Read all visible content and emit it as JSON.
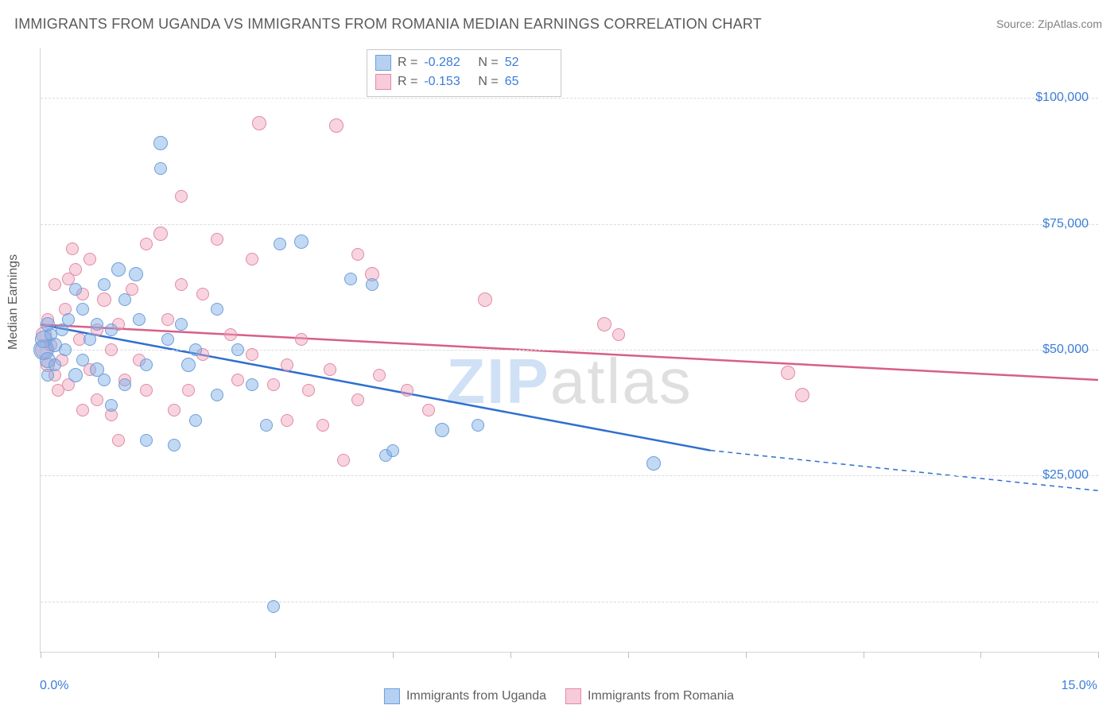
{
  "title": "IMMIGRANTS FROM UGANDA VS IMMIGRANTS FROM ROMANIA MEDIAN EARNINGS CORRELATION CHART",
  "source": "Source: ZipAtlas.com",
  "watermark": {
    "prefix": "ZIP",
    "suffix": "atlas"
  },
  "y_axis_title": "Median Earnings",
  "chart": {
    "type": "scatter",
    "background_color": "#ffffff",
    "grid_color": "#dcdcdc",
    "axis_color": "#d6d6d6",
    "tick_label_color": "#3b7dd8",
    "title_color": "#5a5a5a",
    "title_fontsize": 18,
    "tick_fontsize": 16,
    "xlim": [
      0,
      15
    ],
    "ylim": [
      -10000,
      110000
    ],
    "y_gridlines": [
      0,
      25000,
      50000,
      75000,
      100000
    ],
    "y_tick_labels": [
      "$25,000",
      "$50,000",
      "$75,000",
      "$100,000"
    ],
    "y_tick_values": [
      25000,
      50000,
      75000,
      100000
    ],
    "x_tick_values": [
      0,
      1.67,
      3.33,
      5.0,
      6.67,
      8.33,
      10.0,
      11.67,
      13.33,
      15.0
    ],
    "x_min_label": "0.0%",
    "x_max_label": "15.0%"
  },
  "series": {
    "uganda": {
      "label": "Immigrants from Uganda",
      "marker_fill": "rgba(120,170,230,0.45)",
      "marker_stroke": "#6f9fd8",
      "line_color": "#2f6fd0",
      "line_width": 2.5,
      "R": "-0.282",
      "N": "52",
      "marker_radius_base": 7,
      "regression": {
        "x1": 0,
        "y1": 55000,
        "x2": 9.5,
        "y2": 30000,
        "extend_x": 15,
        "extend_y": 22000
      },
      "points": [
        {
          "x": 0.05,
          "y": 50000,
          "r": 12
        },
        {
          "x": 0.05,
          "y": 52000,
          "r": 10
        },
        {
          "x": 0.1,
          "y": 48000,
          "r": 9
        },
        {
          "x": 0.1,
          "y": 55000,
          "r": 8
        },
        {
          "x": 0.1,
          "y": 45000,
          "r": 7
        },
        {
          "x": 0.15,
          "y": 53000,
          "r": 7
        },
        {
          "x": 0.2,
          "y": 51000,
          "r": 8
        },
        {
          "x": 0.2,
          "y": 47000,
          "r": 7
        },
        {
          "x": 0.3,
          "y": 54000,
          "r": 7
        },
        {
          "x": 0.35,
          "y": 50000,
          "r": 7
        },
        {
          "x": 0.4,
          "y": 56000,
          "r": 7
        },
        {
          "x": 0.5,
          "y": 45000,
          "r": 8
        },
        {
          "x": 0.5,
          "y": 62000,
          "r": 7
        },
        {
          "x": 0.6,
          "y": 48000,
          "r": 7
        },
        {
          "x": 0.6,
          "y": 58000,
          "r": 7
        },
        {
          "x": 0.7,
          "y": 52000,
          "r": 7
        },
        {
          "x": 0.8,
          "y": 46000,
          "r": 8
        },
        {
          "x": 0.8,
          "y": 55000,
          "r": 7
        },
        {
          "x": 0.9,
          "y": 63000,
          "r": 7
        },
        {
          "x": 0.9,
          "y": 44000,
          "r": 7
        },
        {
          "x": 1.0,
          "y": 39000,
          "r": 7
        },
        {
          "x": 1.0,
          "y": 54000,
          "r": 7
        },
        {
          "x": 1.1,
          "y": 66000,
          "r": 8
        },
        {
          "x": 1.2,
          "y": 43000,
          "r": 7
        },
        {
          "x": 1.2,
          "y": 60000,
          "r": 7
        },
        {
          "x": 1.35,
          "y": 65000,
          "r": 8
        },
        {
          "x": 1.4,
          "y": 56000,
          "r": 7
        },
        {
          "x": 1.5,
          "y": 47000,
          "r": 7
        },
        {
          "x": 1.5,
          "y": 32000,
          "r": 7
        },
        {
          "x": 1.7,
          "y": 91000,
          "r": 8
        },
        {
          "x": 1.7,
          "y": 86000,
          "r": 7
        },
        {
          "x": 1.8,
          "y": 52000,
          "r": 7
        },
        {
          "x": 1.9,
          "y": 31000,
          "r": 7
        },
        {
          "x": 2.0,
          "y": 55000,
          "r": 7
        },
        {
          "x": 2.1,
          "y": 47000,
          "r": 8
        },
        {
          "x": 2.2,
          "y": 36000,
          "r": 7
        },
        {
          "x": 2.2,
          "y": 50000,
          "r": 7
        },
        {
          "x": 2.5,
          "y": 58000,
          "r": 7
        },
        {
          "x": 2.5,
          "y": 41000,
          "r": 7
        },
        {
          "x": 2.8,
          "y": 50000,
          "r": 7
        },
        {
          "x": 3.0,
          "y": 43000,
          "r": 7
        },
        {
          "x": 3.2,
          "y": 35000,
          "r": 7
        },
        {
          "x": 3.3,
          "y": -1000,
          "r": 7
        },
        {
          "x": 3.4,
          "y": 71000,
          "r": 7
        },
        {
          "x": 3.7,
          "y": 71500,
          "r": 8
        },
        {
          "x": 4.4,
          "y": 64000,
          "r": 7
        },
        {
          "x": 4.7,
          "y": 63000,
          "r": 7
        },
        {
          "x": 4.9,
          "y": 29000,
          "r": 7
        },
        {
          "x": 5.0,
          "y": 30000,
          "r": 7
        },
        {
          "x": 5.7,
          "y": 34000,
          "r": 8
        },
        {
          "x": 6.2,
          "y": 35000,
          "r": 7
        },
        {
          "x": 8.7,
          "y": 27500,
          "r": 8
        }
      ]
    },
    "romania": {
      "label": "Immigrants from Romania",
      "marker_fill": "rgba(240,160,185,0.45)",
      "marker_stroke": "#e28aa5",
      "line_color": "#d85f87",
      "line_width": 2.5,
      "R": "-0.153",
      "N": "65",
      "marker_radius_base": 7,
      "regression": {
        "x1": 0,
        "y1": 55000,
        "x2": 15,
        "y2": 44000
      },
      "points": [
        {
          "x": 0.05,
          "y": 50000,
          "r": 10
        },
        {
          "x": 0.05,
          "y": 53000,
          "r": 9
        },
        {
          "x": 0.1,
          "y": 47000,
          "r": 8
        },
        {
          "x": 0.1,
          "y": 56000,
          "r": 7
        },
        {
          "x": 0.15,
          "y": 51000,
          "r": 7
        },
        {
          "x": 0.2,
          "y": 45000,
          "r": 7
        },
        {
          "x": 0.2,
          "y": 63000,
          "r": 7
        },
        {
          "x": 0.3,
          "y": 48000,
          "r": 7
        },
        {
          "x": 0.35,
          "y": 58000,
          "r": 7
        },
        {
          "x": 0.4,
          "y": 64000,
          "r": 7
        },
        {
          "x": 0.4,
          "y": 43000,
          "r": 7
        },
        {
          "x": 0.5,
          "y": 66000,
          "r": 7
        },
        {
          "x": 0.55,
          "y": 52000,
          "r": 7
        },
        {
          "x": 0.6,
          "y": 61000,
          "r": 7
        },
        {
          "x": 0.7,
          "y": 46000,
          "r": 7
        },
        {
          "x": 0.7,
          "y": 68000,
          "r": 7
        },
        {
          "x": 0.8,
          "y": 54000,
          "r": 7
        },
        {
          "x": 0.8,
          "y": 40000,
          "r": 7
        },
        {
          "x": 0.9,
          "y": 60000,
          "r": 8
        },
        {
          "x": 1.0,
          "y": 50000,
          "r": 7
        },
        {
          "x": 1.0,
          "y": 37000,
          "r": 7
        },
        {
          "x": 1.1,
          "y": 55000,
          "r": 7
        },
        {
          "x": 1.2,
          "y": 44000,
          "r": 7
        },
        {
          "x": 1.3,
          "y": 62000,
          "r": 7
        },
        {
          "x": 1.4,
          "y": 48000,
          "r": 7
        },
        {
          "x": 1.5,
          "y": 71000,
          "r": 7
        },
        {
          "x": 1.5,
          "y": 42000,
          "r": 7
        },
        {
          "x": 1.7,
          "y": 73000,
          "r": 8
        },
        {
          "x": 1.8,
          "y": 56000,
          "r": 7
        },
        {
          "x": 2.0,
          "y": 63000,
          "r": 7
        },
        {
          "x": 2.0,
          "y": 80500,
          "r": 7
        },
        {
          "x": 2.1,
          "y": 42000,
          "r": 7
        },
        {
          "x": 2.3,
          "y": 49000,
          "r": 7
        },
        {
          "x": 2.3,
          "y": 61000,
          "r": 7
        },
        {
          "x": 2.5,
          "y": 72000,
          "r": 7
        },
        {
          "x": 2.7,
          "y": 53000,
          "r": 7
        },
        {
          "x": 2.8,
          "y": 44000,
          "r": 7
        },
        {
          "x": 3.0,
          "y": 49000,
          "r": 7
        },
        {
          "x": 3.0,
          "y": 68000,
          "r": 7
        },
        {
          "x": 3.1,
          "y": 95000,
          "r": 8
        },
        {
          "x": 3.3,
          "y": 43000,
          "r": 7
        },
        {
          "x": 3.5,
          "y": 47000,
          "r": 7
        },
        {
          "x": 3.5,
          "y": 36000,
          "r": 7
        },
        {
          "x": 3.7,
          "y": 52000,
          "r": 7
        },
        {
          "x": 3.8,
          "y": 42000,
          "r": 7
        },
        {
          "x": 4.0,
          "y": 35000,
          "r": 7
        },
        {
          "x": 4.1,
          "y": 46000,
          "r": 7
        },
        {
          "x": 4.2,
          "y": 94500,
          "r": 8
        },
        {
          "x": 4.3,
          "y": 28000,
          "r": 7
        },
        {
          "x": 4.5,
          "y": 40000,
          "r": 7
        },
        {
          "x": 4.5,
          "y": 69000,
          "r": 7
        },
        {
          "x": 4.7,
          "y": 65000,
          "r": 8
        },
        {
          "x": 4.8,
          "y": 45000,
          "r": 7
        },
        {
          "x": 5.2,
          "y": 42000,
          "r": 7
        },
        {
          "x": 5.5,
          "y": 38000,
          "r": 7
        },
        {
          "x": 6.3,
          "y": 60000,
          "r": 8
        },
        {
          "x": 8.0,
          "y": 55000,
          "r": 8
        },
        {
          "x": 8.2,
          "y": 53000,
          "r": 7
        },
        {
          "x": 10.6,
          "y": 45500,
          "r": 8
        },
        {
          "x": 10.8,
          "y": 41000,
          "r": 8
        },
        {
          "x": 0.25,
          "y": 42000,
          "r": 7
        },
        {
          "x": 0.6,
          "y": 38000,
          "r": 7
        },
        {
          "x": 1.1,
          "y": 32000,
          "r": 7
        },
        {
          "x": 1.9,
          "y": 38000,
          "r": 7
        },
        {
          "x": 0.45,
          "y": 70000,
          "r": 7
        }
      ]
    }
  },
  "legend": {
    "uganda_swatch_fill": "rgba(120,170,230,0.55)",
    "uganda_swatch_border": "#6f9fd8",
    "romania_swatch_fill": "rgba(240,160,185,0.55)",
    "romania_swatch_border": "#e28aa5"
  },
  "stats_box": {
    "r_label": "R =",
    "n_label": "N ="
  }
}
